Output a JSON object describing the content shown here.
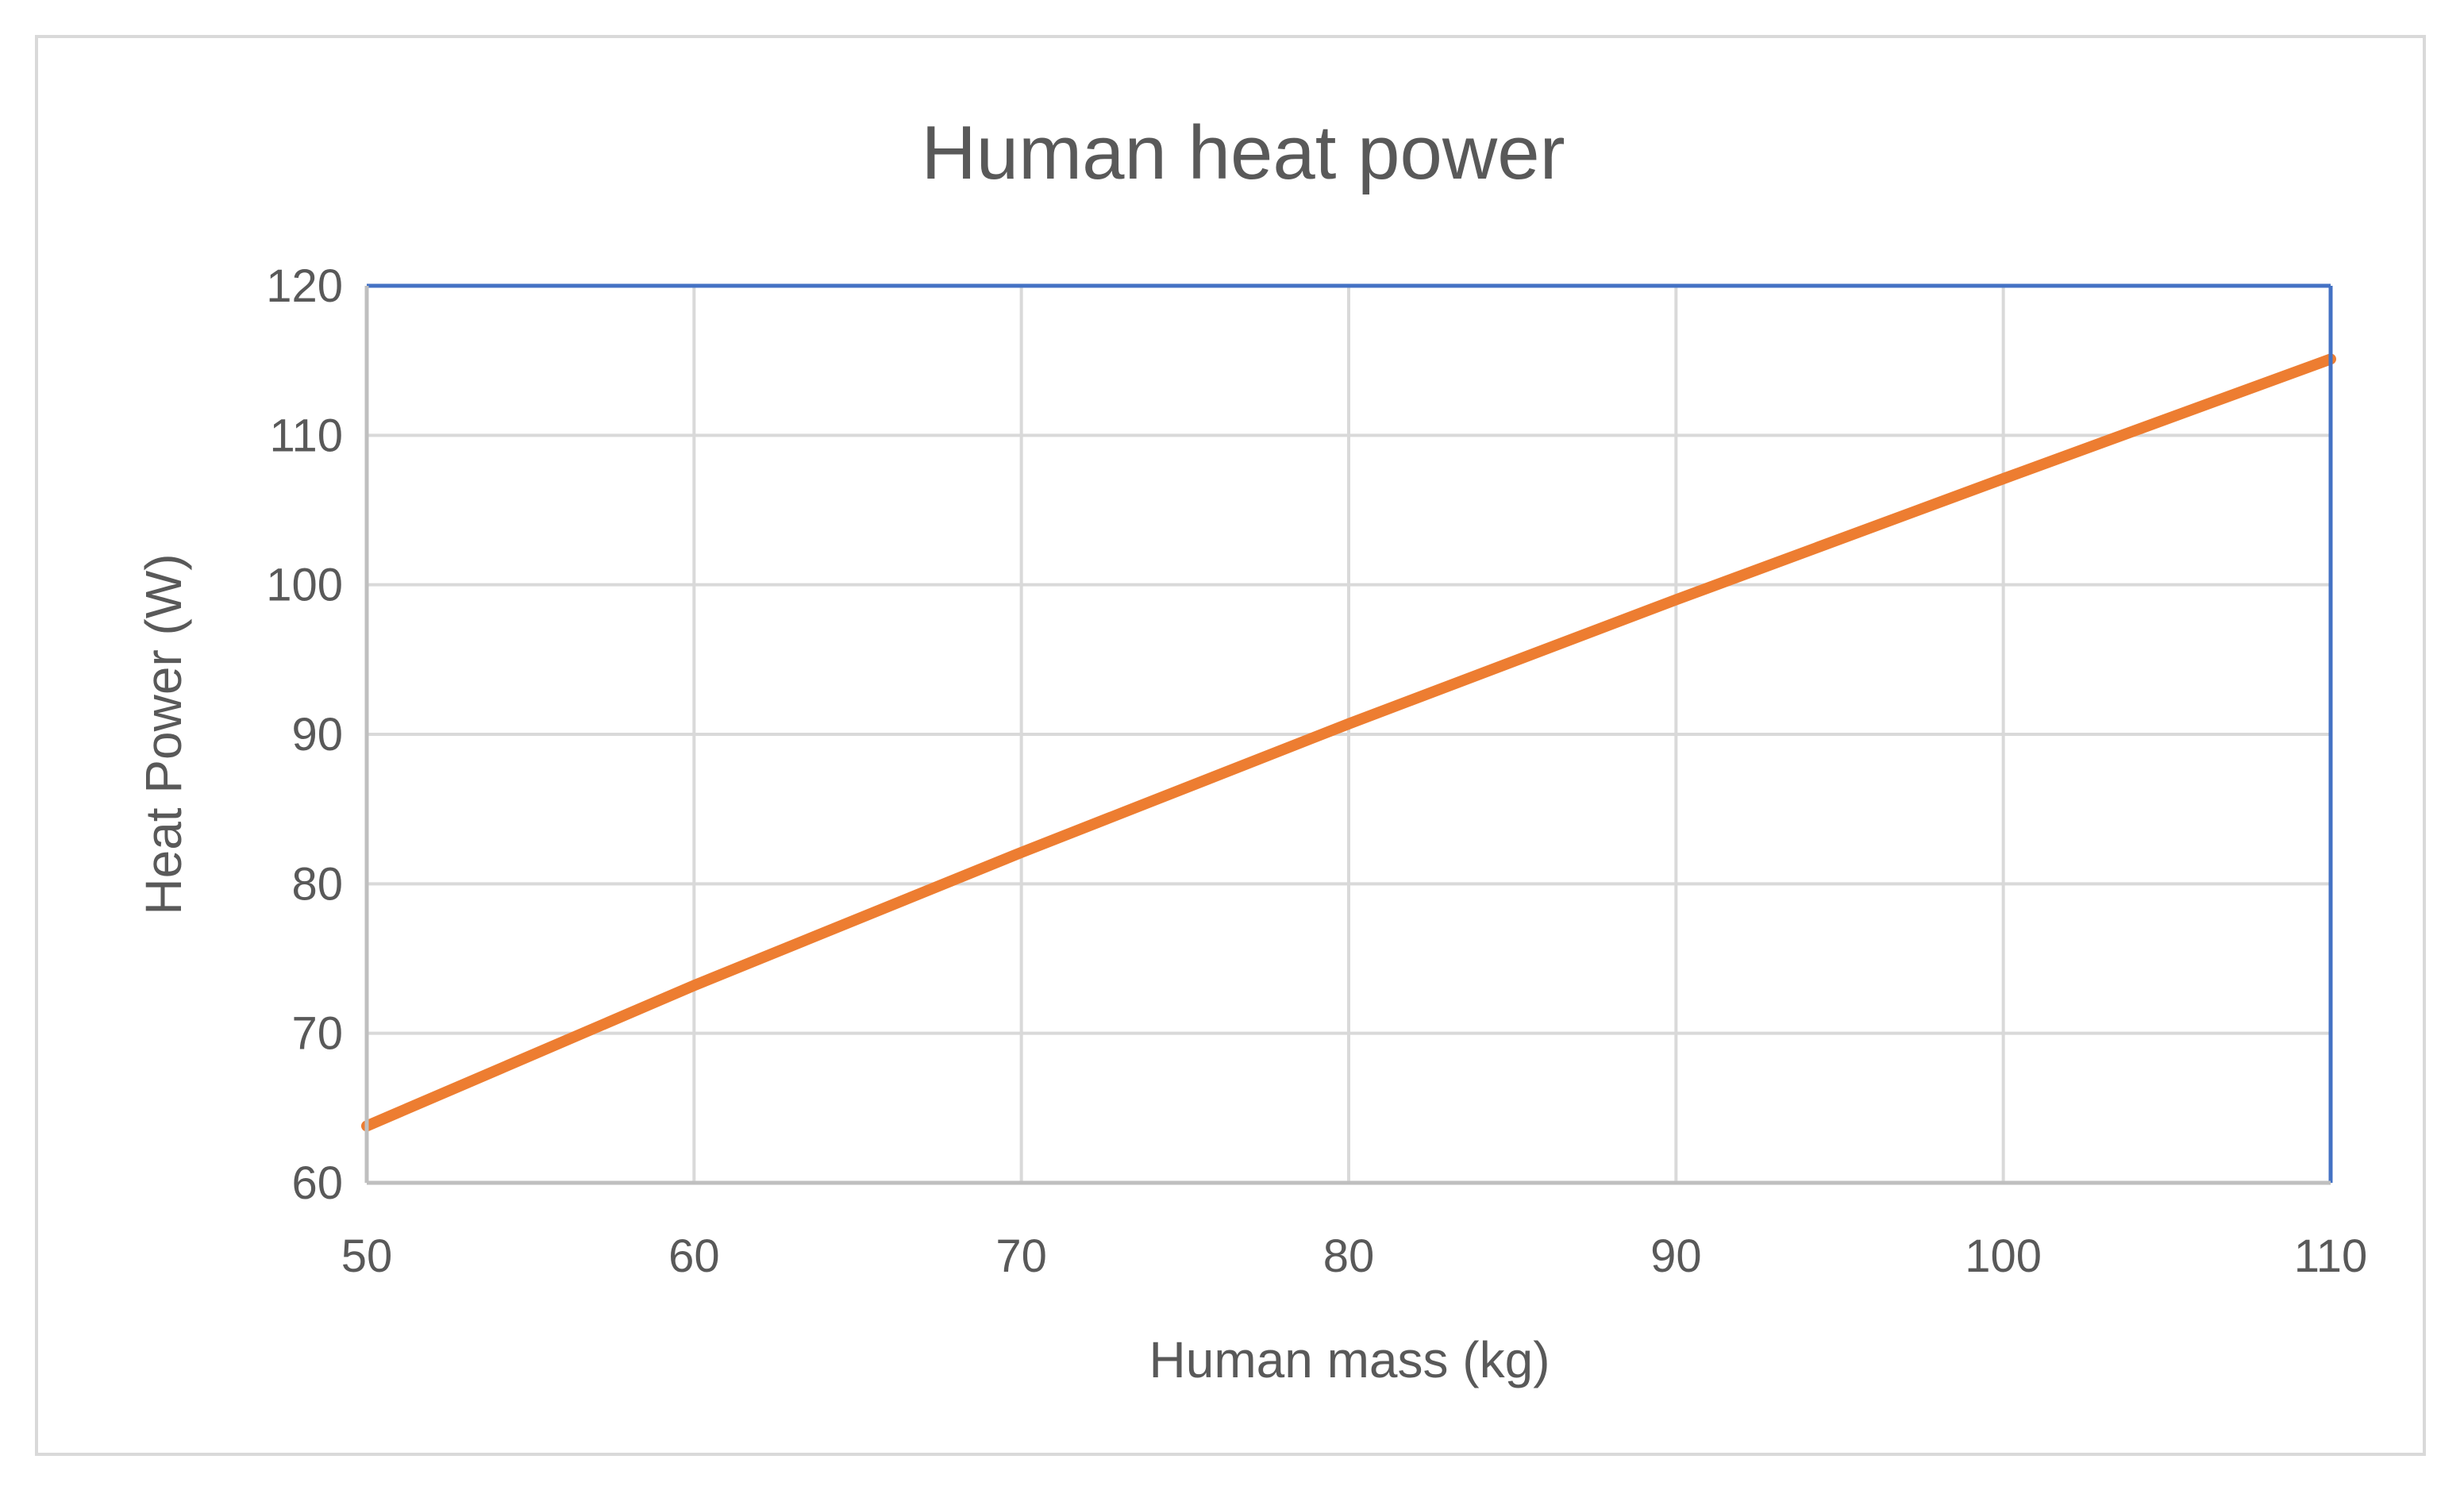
{
  "chart_data": {
    "type": "line",
    "title": "Human heat power",
    "xlabel": "Human mass (kg)",
    "ylabel": "Heat Power (W)",
    "xlim": [
      50,
      110
    ],
    "ylim": [
      60,
      120
    ],
    "x_ticks": [
      "50",
      "60",
      "70",
      "80",
      "90",
      "100",
      "110"
    ],
    "y_ticks": [
      "60",
      "70",
      "80",
      "90",
      "100",
      "110",
      "120"
    ],
    "grid": true,
    "legend": "none",
    "colors": {
      "series": "#ed7d31",
      "plot_border": "#4472c4",
      "grid": "#d9d9d9",
      "text": "#595959"
    },
    "series": [
      {
        "name": "Heat Power",
        "x": [
          50,
          60,
          70,
          80,
          90,
          100,
          110
        ],
        "y": [
          63.8,
          73.2,
          82.1,
          90.7,
          99.0,
          107.1,
          115.1
        ]
      }
    ]
  }
}
